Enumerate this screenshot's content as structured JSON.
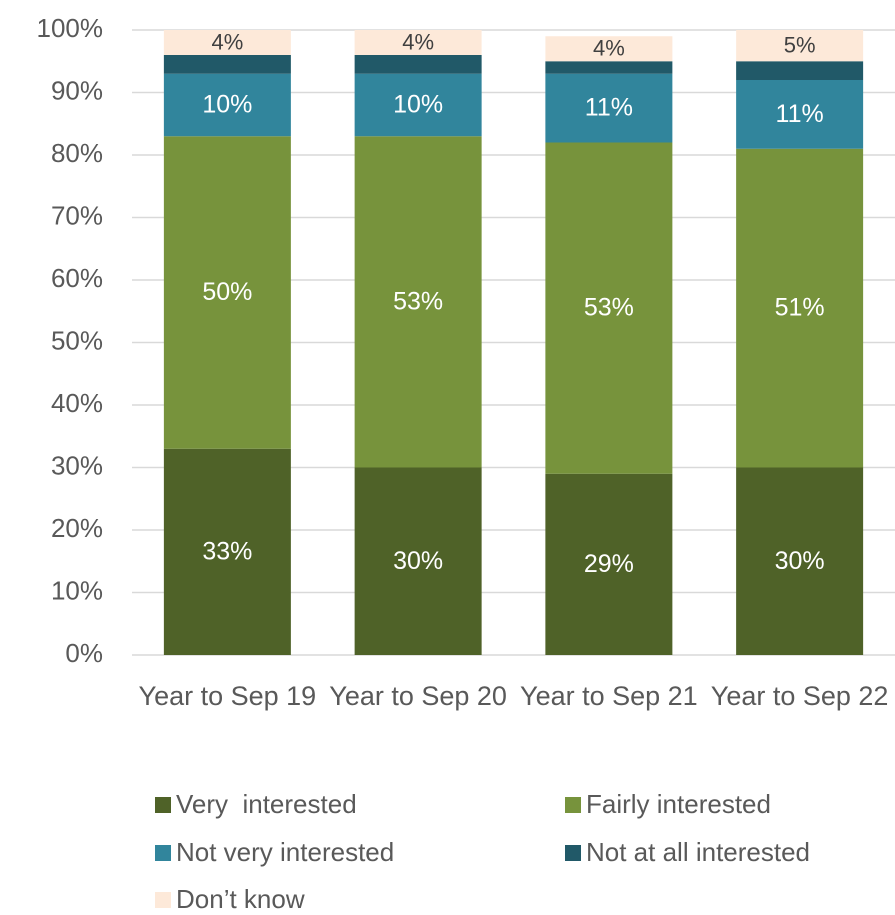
{
  "chart_data": {
    "type": "stacked_bar",
    "categories": [
      "Year to Sep 19",
      "Year to Sep 20",
      "Year to Sep 21",
      "Year to Sep 22"
    ],
    "series": [
      {
        "name": "Very  interested",
        "color": "#4f6228",
        "values": [
          33,
          30,
          29,
          30
        ],
        "value_labels": [
          "33%",
          "30%",
          "29%",
          "30%"
        ]
      },
      {
        "name": "Fairly interested",
        "color": "#77933c",
        "values": [
          50,
          53,
          53,
          51
        ],
        "value_labels": [
          "50%",
          "53%",
          "53%",
          "51%"
        ]
      },
      {
        "name": "Not very interested",
        "color": "#31859c",
        "values": [
          10,
          10,
          11,
          11
        ],
        "value_labels": [
          "10%",
          "10%",
          "11%",
          "11%"
        ]
      },
      {
        "name": "Not at all interested",
        "color": "#215968",
        "values": [
          3,
          3,
          2,
          3
        ]
      },
      {
        "name": "Don’t know",
        "color": "#fde9d9",
        "values": [
          4,
          4,
          4,
          5
        ],
        "value_labels": [
          "4%",
          "4%",
          "4%",
          "5%"
        ]
      }
    ],
    "ylim": [
      0,
      100
    ],
    "yticks": [
      {
        "value": 0,
        "label": "0%"
      },
      {
        "value": 10,
        "label": "10%"
      },
      {
        "value": 20,
        "label": "20%"
      },
      {
        "value": 30,
        "label": "30%"
      },
      {
        "value": 40,
        "label": "40%"
      },
      {
        "value": 50,
        "label": "50%"
      },
      {
        "value": 60,
        "label": "60%"
      },
      {
        "value": 70,
        "label": "70%"
      },
      {
        "value": 80,
        "label": "80%"
      },
      {
        "value": 90,
        "label": "90%"
      },
      {
        "value": 100,
        "label": "100%"
      }
    ],
    "grid": true
  }
}
